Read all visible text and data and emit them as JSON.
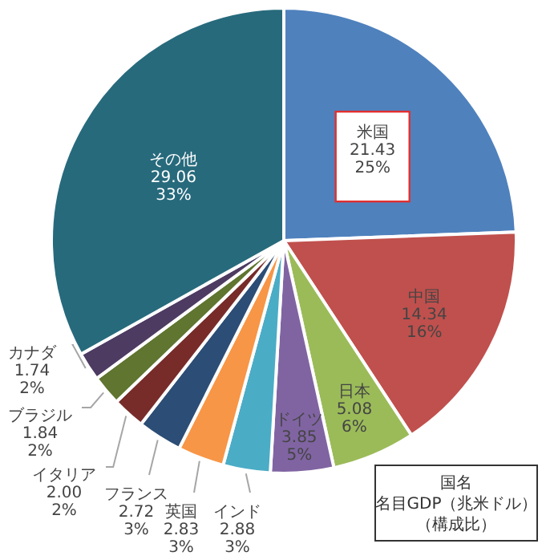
{
  "chart_data": {
    "type": "pie",
    "categories": [
      "米国",
      "中国",
      "日本",
      "ドイツ",
      "インド",
      "英国",
      "フランス",
      "イタリア",
      "ブラジル",
      "カナダ",
      "その他"
    ],
    "values": [
      21.43,
      14.34,
      5.08,
      3.85,
      2.88,
      2.83,
      2.72,
      2.0,
      1.84,
      1.74,
      29.06
    ],
    "value_labels": [
      "21.43\n25%",
      "14.34\n16%",
      "5.08\n6%",
      "3.85\n5%",
      "2.88\n3%",
      "2.83\n3%",
      "2.72\n3%",
      "2.00\n2%",
      "1.84\n2%",
      "1.74\n2%",
      "29.06\n33%"
    ],
    "colors": [
      "#4f81bd",
      "#c0504d",
      "#9bbb59",
      "#8064a2",
      "#4bacc6",
      "#f79646",
      "#2c4d75",
      "#772c2a",
      "#5f7530",
      "#4d3b62",
      "#276a7c"
    ],
    "annotations": [
      "国名",
      "名目GDP（兆米ドル）",
      "（構成比）"
    ]
  }
}
